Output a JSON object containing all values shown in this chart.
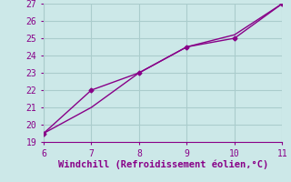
{
  "line1_x": [
    6,
    7,
    8,
    9,
    10,
    11
  ],
  "line1_y": [
    19.5,
    22,
    23,
    24.5,
    25,
    27
  ],
  "line2_x": [
    6,
    7,
    8,
    9,
    10,
    11
  ],
  "line2_y": [
    19.5,
    21,
    23,
    24.5,
    25.2,
    27
  ],
  "color": "#880088",
  "bg_color": "#cce8e8",
  "grid_color": "#aacccc",
  "xlabel": "Windchill (Refroidissement éolien,°C)",
  "xlim": [
    6,
    11
  ],
  "ylim": [
    19,
    27
  ],
  "yticks": [
    19,
    20,
    21,
    22,
    23,
    24,
    25,
    26,
    27
  ],
  "xticks": [
    6,
    7,
    8,
    9,
    10,
    11
  ],
  "xlabel_fontsize": 7.5,
  "tick_fontsize": 7
}
